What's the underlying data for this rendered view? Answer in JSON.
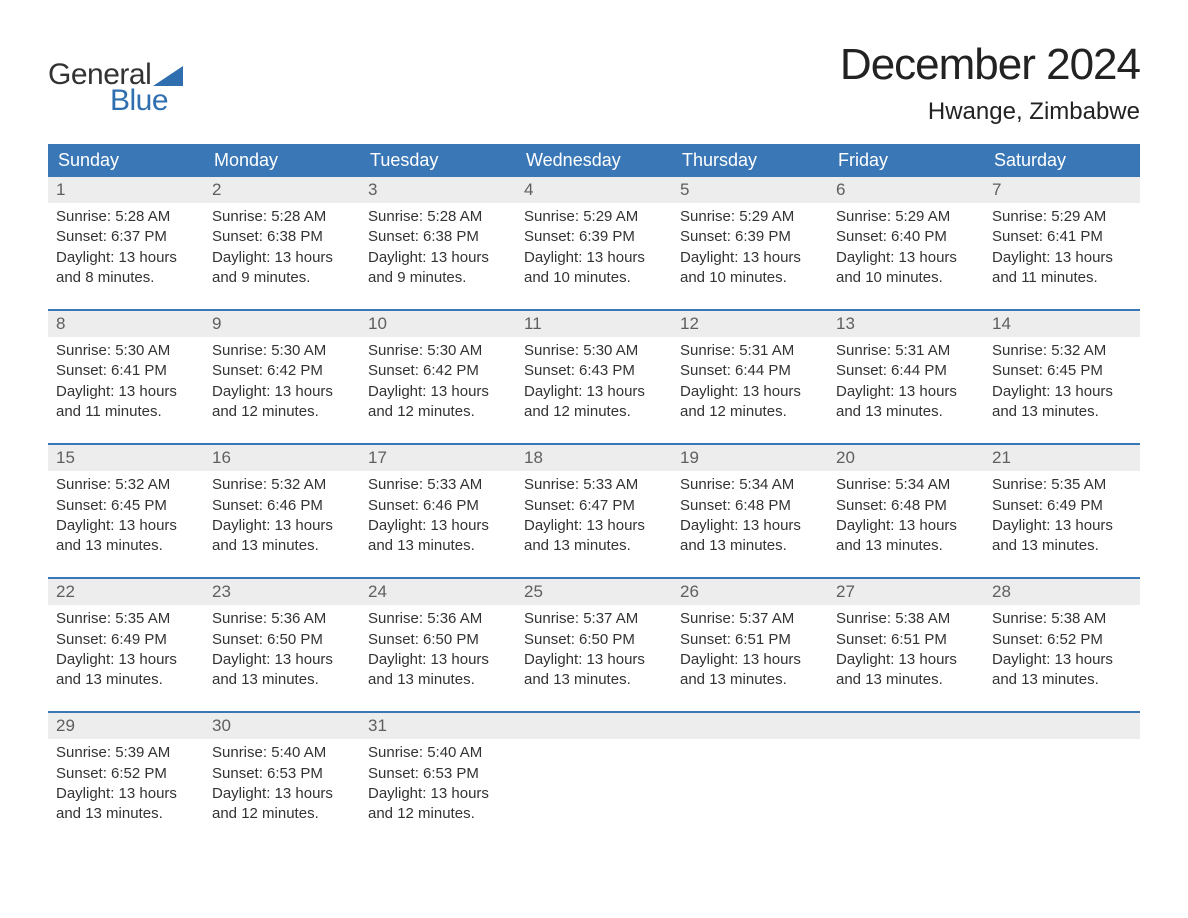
{
  "logo": {
    "text1": "General",
    "text2": "Blue",
    "shape_color": "#2f6fb0",
    "text1_color": "#333333",
    "text2_color": "#2f6fb0"
  },
  "title": "December 2024",
  "location": "Hwange, Zimbabwe",
  "colors": {
    "header_bg": "#3a77b6",
    "header_text": "#ffffff",
    "daynum_bg": "#ededed",
    "daynum_text": "#5f5f5f",
    "body_text": "#333333",
    "row_border": "#3a77b6",
    "page_bg": "#ffffff"
  },
  "typography": {
    "month_title_fontsize": 44,
    "location_fontsize": 24,
    "header_fontsize": 18,
    "daynum_fontsize": 17,
    "body_fontsize": 15,
    "logo_fontsize": 30
  },
  "weekdays": [
    "Sunday",
    "Monday",
    "Tuesday",
    "Wednesday",
    "Thursday",
    "Friday",
    "Saturday"
  ],
  "weeks": [
    [
      {
        "n": "1",
        "sunrise": "Sunrise: 5:28 AM",
        "sunset": "Sunset: 6:37 PM",
        "d1": "Daylight: 13 hours",
        "d2": "and 8 minutes."
      },
      {
        "n": "2",
        "sunrise": "Sunrise: 5:28 AM",
        "sunset": "Sunset: 6:38 PM",
        "d1": "Daylight: 13 hours",
        "d2": "and 9 minutes."
      },
      {
        "n": "3",
        "sunrise": "Sunrise: 5:28 AM",
        "sunset": "Sunset: 6:38 PM",
        "d1": "Daylight: 13 hours",
        "d2": "and 9 minutes."
      },
      {
        "n": "4",
        "sunrise": "Sunrise: 5:29 AM",
        "sunset": "Sunset: 6:39 PM",
        "d1": "Daylight: 13 hours",
        "d2": "and 10 minutes."
      },
      {
        "n": "5",
        "sunrise": "Sunrise: 5:29 AM",
        "sunset": "Sunset: 6:39 PM",
        "d1": "Daylight: 13 hours",
        "d2": "and 10 minutes."
      },
      {
        "n": "6",
        "sunrise": "Sunrise: 5:29 AM",
        "sunset": "Sunset: 6:40 PM",
        "d1": "Daylight: 13 hours",
        "d2": "and 10 minutes."
      },
      {
        "n": "7",
        "sunrise": "Sunrise: 5:29 AM",
        "sunset": "Sunset: 6:41 PM",
        "d1": "Daylight: 13 hours",
        "d2": "and 11 minutes."
      }
    ],
    [
      {
        "n": "8",
        "sunrise": "Sunrise: 5:30 AM",
        "sunset": "Sunset: 6:41 PM",
        "d1": "Daylight: 13 hours",
        "d2": "and 11 minutes."
      },
      {
        "n": "9",
        "sunrise": "Sunrise: 5:30 AM",
        "sunset": "Sunset: 6:42 PM",
        "d1": "Daylight: 13 hours",
        "d2": "and 12 minutes."
      },
      {
        "n": "10",
        "sunrise": "Sunrise: 5:30 AM",
        "sunset": "Sunset: 6:42 PM",
        "d1": "Daylight: 13 hours",
        "d2": "and 12 minutes."
      },
      {
        "n": "11",
        "sunrise": "Sunrise: 5:30 AM",
        "sunset": "Sunset: 6:43 PM",
        "d1": "Daylight: 13 hours",
        "d2": "and 12 minutes."
      },
      {
        "n": "12",
        "sunrise": "Sunrise: 5:31 AM",
        "sunset": "Sunset: 6:44 PM",
        "d1": "Daylight: 13 hours",
        "d2": "and 12 minutes."
      },
      {
        "n": "13",
        "sunrise": "Sunrise: 5:31 AM",
        "sunset": "Sunset: 6:44 PM",
        "d1": "Daylight: 13 hours",
        "d2": "and 13 minutes."
      },
      {
        "n": "14",
        "sunrise": "Sunrise: 5:32 AM",
        "sunset": "Sunset: 6:45 PM",
        "d1": "Daylight: 13 hours",
        "d2": "and 13 minutes."
      }
    ],
    [
      {
        "n": "15",
        "sunrise": "Sunrise: 5:32 AM",
        "sunset": "Sunset: 6:45 PM",
        "d1": "Daylight: 13 hours",
        "d2": "and 13 minutes."
      },
      {
        "n": "16",
        "sunrise": "Sunrise: 5:32 AM",
        "sunset": "Sunset: 6:46 PM",
        "d1": "Daylight: 13 hours",
        "d2": "and 13 minutes."
      },
      {
        "n": "17",
        "sunrise": "Sunrise: 5:33 AM",
        "sunset": "Sunset: 6:46 PM",
        "d1": "Daylight: 13 hours",
        "d2": "and 13 minutes."
      },
      {
        "n": "18",
        "sunrise": "Sunrise: 5:33 AM",
        "sunset": "Sunset: 6:47 PM",
        "d1": "Daylight: 13 hours",
        "d2": "and 13 minutes."
      },
      {
        "n": "19",
        "sunrise": "Sunrise: 5:34 AM",
        "sunset": "Sunset: 6:48 PM",
        "d1": "Daylight: 13 hours",
        "d2": "and 13 minutes."
      },
      {
        "n": "20",
        "sunrise": "Sunrise: 5:34 AM",
        "sunset": "Sunset: 6:48 PM",
        "d1": "Daylight: 13 hours",
        "d2": "and 13 minutes."
      },
      {
        "n": "21",
        "sunrise": "Sunrise: 5:35 AM",
        "sunset": "Sunset: 6:49 PM",
        "d1": "Daylight: 13 hours",
        "d2": "and 13 minutes."
      }
    ],
    [
      {
        "n": "22",
        "sunrise": "Sunrise: 5:35 AM",
        "sunset": "Sunset: 6:49 PM",
        "d1": "Daylight: 13 hours",
        "d2": "and 13 minutes."
      },
      {
        "n": "23",
        "sunrise": "Sunrise: 5:36 AM",
        "sunset": "Sunset: 6:50 PM",
        "d1": "Daylight: 13 hours",
        "d2": "and 13 minutes."
      },
      {
        "n": "24",
        "sunrise": "Sunrise: 5:36 AM",
        "sunset": "Sunset: 6:50 PM",
        "d1": "Daylight: 13 hours",
        "d2": "and 13 minutes."
      },
      {
        "n": "25",
        "sunrise": "Sunrise: 5:37 AM",
        "sunset": "Sunset: 6:50 PM",
        "d1": "Daylight: 13 hours",
        "d2": "and 13 minutes."
      },
      {
        "n": "26",
        "sunrise": "Sunrise: 5:37 AM",
        "sunset": "Sunset: 6:51 PM",
        "d1": "Daylight: 13 hours",
        "d2": "and 13 minutes."
      },
      {
        "n": "27",
        "sunrise": "Sunrise: 5:38 AM",
        "sunset": "Sunset: 6:51 PM",
        "d1": "Daylight: 13 hours",
        "d2": "and 13 minutes."
      },
      {
        "n": "28",
        "sunrise": "Sunrise: 5:38 AM",
        "sunset": "Sunset: 6:52 PM",
        "d1": "Daylight: 13 hours",
        "d2": "and 13 minutes."
      }
    ],
    [
      {
        "n": "29",
        "sunrise": "Sunrise: 5:39 AM",
        "sunset": "Sunset: 6:52 PM",
        "d1": "Daylight: 13 hours",
        "d2": "and 13 minutes."
      },
      {
        "n": "30",
        "sunrise": "Sunrise: 5:40 AM",
        "sunset": "Sunset: 6:53 PM",
        "d1": "Daylight: 13 hours",
        "d2": "and 12 minutes."
      },
      {
        "n": "31",
        "sunrise": "Sunrise: 5:40 AM",
        "sunset": "Sunset: 6:53 PM",
        "d1": "Daylight: 13 hours",
        "d2": "and 12 minutes."
      },
      {
        "n": "",
        "sunrise": "",
        "sunset": "",
        "d1": "",
        "d2": ""
      },
      {
        "n": "",
        "sunrise": "",
        "sunset": "",
        "d1": "",
        "d2": ""
      },
      {
        "n": "",
        "sunrise": "",
        "sunset": "",
        "d1": "",
        "d2": ""
      },
      {
        "n": "",
        "sunrise": "",
        "sunset": "",
        "d1": "",
        "d2": ""
      }
    ]
  ]
}
